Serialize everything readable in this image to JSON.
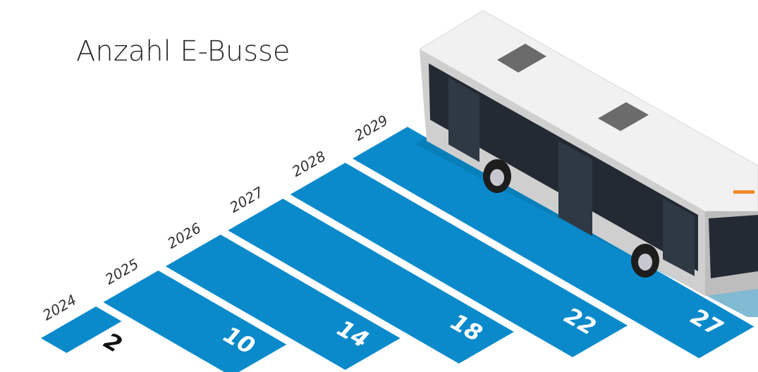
{
  "chart_data": {
    "type": "bar",
    "title": "Anzahl E-Busse",
    "categories": [
      "2024",
      "2025",
      "2026",
      "2027",
      "2028",
      "2029"
    ],
    "values": [
      2,
      10,
      14,
      18,
      22,
      27
    ],
    "color": "#0a8acb"
  }
}
